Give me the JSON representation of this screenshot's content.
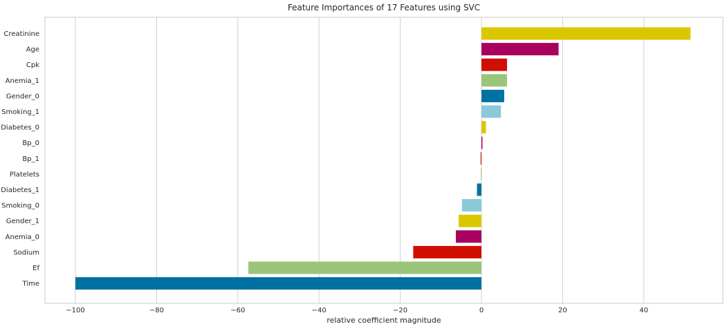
{
  "chart_data": {
    "type": "bar",
    "orientation": "horizontal",
    "title": "Feature Importances of 17 Features using SVC",
    "xlabel": "relative coefficient magnitude",
    "ylabel": "",
    "xlim": [
      -107.5,
      59
    ],
    "xticks": [
      -100,
      -80,
      -60,
      -40,
      -20,
      0,
      20,
      40
    ],
    "grid": "vertical",
    "categories": [
      "Creatinine",
      "Age",
      "Cpk",
      "Anemia_1",
      "Gender_0",
      "Smoking_1",
      "Diabetes_0",
      "Bp_0",
      "Bp_1",
      "Platelets",
      "Diabetes_1",
      "Smoking_0",
      "Gender_1",
      "Anemia_0",
      "Sodium",
      "Ef",
      "Time"
    ],
    "values": [
      51.5,
      19.0,
      6.3,
      6.3,
      5.6,
      4.8,
      1.1,
      0.25,
      -0.2,
      -0.15,
      -1.1,
      -4.8,
      -5.6,
      -6.3,
      -16.8,
      -57.4,
      -100.0
    ],
    "colors": [
      "#dbc700",
      "#a8005e",
      "#d00f00",
      "#9bc57a",
      "#0072a2",
      "#89c9d8",
      "#dbc700",
      "#a8005e",
      "#d00f00",
      "#9bc57a",
      "#0072a2",
      "#89c9d8",
      "#dbc700",
      "#a8005e",
      "#d00f00",
      "#9bc57a",
      "#0072a2"
    ]
  },
  "colors": {
    "grid": "#d0d0d0",
    "spine": "#c8c8c8",
    "text": "#262626"
  }
}
